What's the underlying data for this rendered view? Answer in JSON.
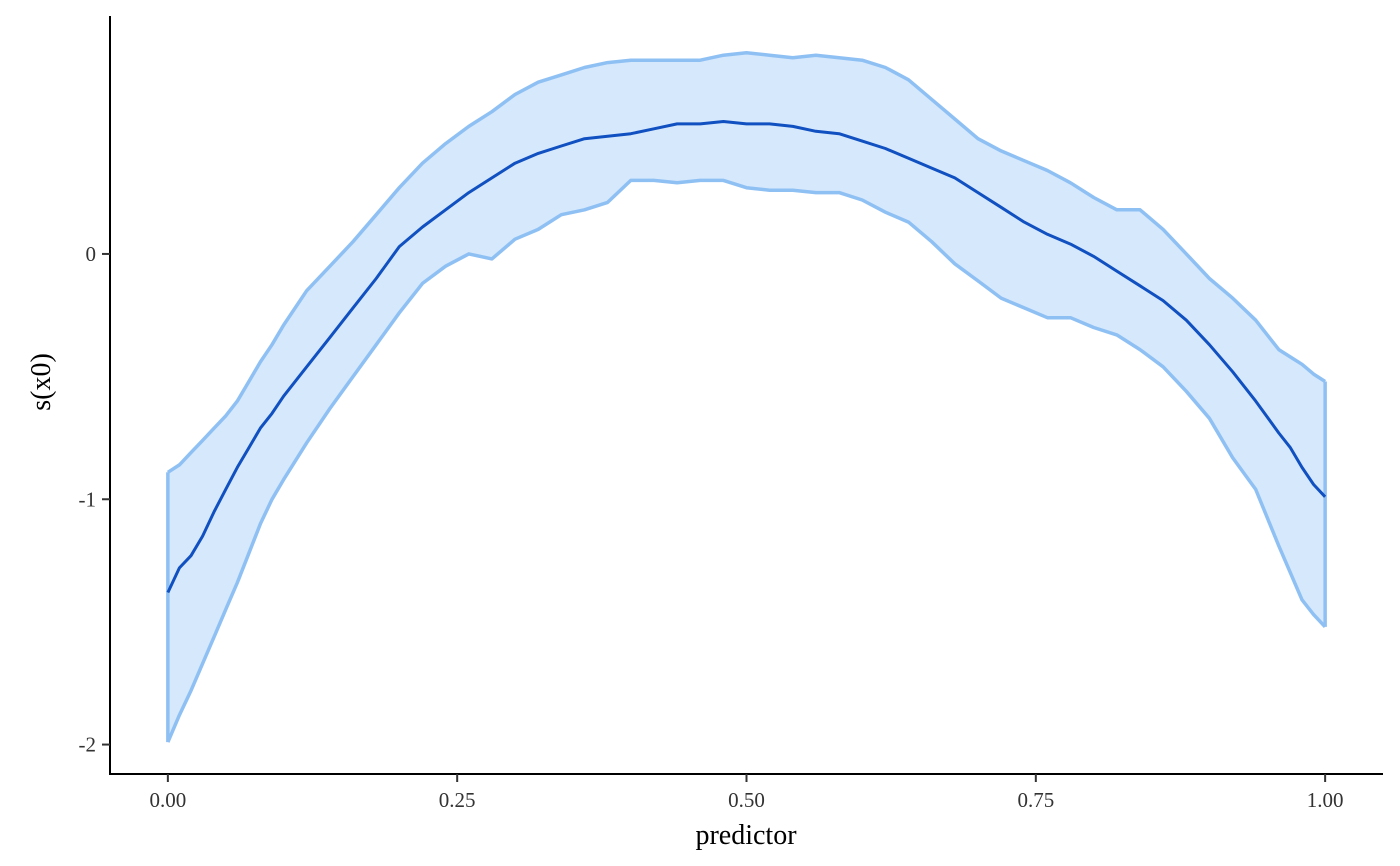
{
  "chart_data": {
    "type": "area",
    "title": "",
    "xlabel": "predictor",
    "ylabel": "s(x0)",
    "xlim": [
      -0.05,
      1.05
    ],
    "ylim": [
      -2.12,
      0.97
    ],
    "xticks": [
      0.0,
      0.25,
      0.5,
      0.75,
      1.0
    ],
    "xtick_labels": [
      "0.00",
      "0.25",
      "0.50",
      "0.75",
      "1.00"
    ],
    "yticks": [
      0,
      -1,
      -2
    ],
    "ytick_labels": [
      "0",
      "-1",
      "-2"
    ],
    "grid": false,
    "legend": "none",
    "colors": {
      "fit_line": "#1050c0",
      "band_fill": "#d6e8fc",
      "band_edge": "#8fc0f4"
    },
    "series": [
      {
        "role": "fit",
        "x": [
          0.0,
          0.01,
          0.02,
          0.03,
          0.04,
          0.05,
          0.06,
          0.07,
          0.08,
          0.09,
          0.1,
          0.12,
          0.14,
          0.16,
          0.18,
          0.2,
          0.22,
          0.24,
          0.26,
          0.28,
          0.3,
          0.32,
          0.34,
          0.36,
          0.38,
          0.4,
          0.42,
          0.44,
          0.46,
          0.48,
          0.5,
          0.52,
          0.54,
          0.56,
          0.58,
          0.6,
          0.62,
          0.64,
          0.66,
          0.68,
          0.7,
          0.72,
          0.74,
          0.76,
          0.78,
          0.8,
          0.82,
          0.84,
          0.86,
          0.88,
          0.9,
          0.92,
          0.94,
          0.96,
          0.97,
          0.98,
          0.99,
          1.0
        ],
        "y": [
          -1.38,
          -1.28,
          -1.23,
          -1.15,
          -1.05,
          -0.96,
          -0.87,
          -0.79,
          -0.71,
          -0.65,
          -0.58,
          -0.46,
          -0.34,
          -0.22,
          -0.1,
          0.03,
          0.11,
          0.18,
          0.25,
          0.31,
          0.37,
          0.41,
          0.44,
          0.47,
          0.48,
          0.49,
          0.51,
          0.53,
          0.53,
          0.54,
          0.53,
          0.53,
          0.52,
          0.5,
          0.49,
          0.46,
          0.43,
          0.39,
          0.35,
          0.31,
          0.25,
          0.19,
          0.13,
          0.08,
          0.04,
          -0.01,
          -0.07,
          -0.13,
          -0.19,
          -0.27,
          -0.37,
          -0.48,
          -0.6,
          -0.73,
          -0.79,
          -0.87,
          -0.94,
          -0.99
        ]
      },
      {
        "role": "upper",
        "x": [
          0.0,
          0.01,
          0.02,
          0.03,
          0.04,
          0.05,
          0.06,
          0.07,
          0.08,
          0.09,
          0.1,
          0.12,
          0.14,
          0.16,
          0.18,
          0.2,
          0.22,
          0.24,
          0.26,
          0.28,
          0.3,
          0.32,
          0.34,
          0.36,
          0.38,
          0.4,
          0.42,
          0.44,
          0.46,
          0.48,
          0.5,
          0.52,
          0.54,
          0.56,
          0.58,
          0.6,
          0.62,
          0.64,
          0.66,
          0.68,
          0.7,
          0.72,
          0.74,
          0.76,
          0.78,
          0.8,
          0.82,
          0.84,
          0.86,
          0.88,
          0.9,
          0.92,
          0.94,
          0.96,
          0.97,
          0.98,
          0.99,
          1.0
        ],
        "y": [
          -0.89,
          -0.86,
          -0.81,
          -0.76,
          -0.71,
          -0.66,
          -0.6,
          -0.52,
          -0.44,
          -0.37,
          -0.29,
          -0.15,
          -0.05,
          0.05,
          0.16,
          0.27,
          0.37,
          0.45,
          0.52,
          0.58,
          0.65,
          0.7,
          0.73,
          0.76,
          0.78,
          0.79,
          0.79,
          0.79,
          0.79,
          0.81,
          0.82,
          0.81,
          0.8,
          0.81,
          0.8,
          0.79,
          0.76,
          0.71,
          0.63,
          0.55,
          0.47,
          0.42,
          0.38,
          0.34,
          0.29,
          0.23,
          0.18,
          0.18,
          0.1,
          0.0,
          -0.1,
          -0.18,
          -0.27,
          -0.39,
          -0.42,
          -0.45,
          -0.49,
          -0.52
        ]
      },
      {
        "role": "lower",
        "x": [
          0.0,
          0.01,
          0.02,
          0.03,
          0.04,
          0.05,
          0.06,
          0.07,
          0.08,
          0.09,
          0.1,
          0.12,
          0.14,
          0.16,
          0.18,
          0.2,
          0.22,
          0.24,
          0.26,
          0.28,
          0.3,
          0.32,
          0.34,
          0.36,
          0.38,
          0.4,
          0.42,
          0.44,
          0.46,
          0.48,
          0.5,
          0.52,
          0.54,
          0.56,
          0.58,
          0.6,
          0.62,
          0.64,
          0.66,
          0.68,
          0.7,
          0.72,
          0.74,
          0.76,
          0.78,
          0.8,
          0.82,
          0.84,
          0.86,
          0.88,
          0.9,
          0.92,
          0.94,
          0.96,
          0.97,
          0.98,
          0.99,
          1.0
        ],
        "y": [
          -1.99,
          -1.88,
          -1.78,
          -1.67,
          -1.56,
          -1.45,
          -1.34,
          -1.22,
          -1.1,
          -1.0,
          -0.92,
          -0.77,
          -0.63,
          -0.5,
          -0.37,
          -0.24,
          -0.12,
          -0.05,
          0.0,
          -0.02,
          0.06,
          0.1,
          0.16,
          0.18,
          0.21,
          0.3,
          0.3,
          0.29,
          0.3,
          0.3,
          0.27,
          0.26,
          0.26,
          0.25,
          0.25,
          0.22,
          0.17,
          0.13,
          0.05,
          -0.04,
          -0.11,
          -0.18,
          -0.22,
          -0.26,
          -0.26,
          -0.3,
          -0.33,
          -0.39,
          -0.46,
          -0.56,
          -0.67,
          -0.83,
          -0.96,
          -1.19,
          -1.3,
          -1.41,
          -1.47,
          -1.52
        ]
      }
    ]
  }
}
